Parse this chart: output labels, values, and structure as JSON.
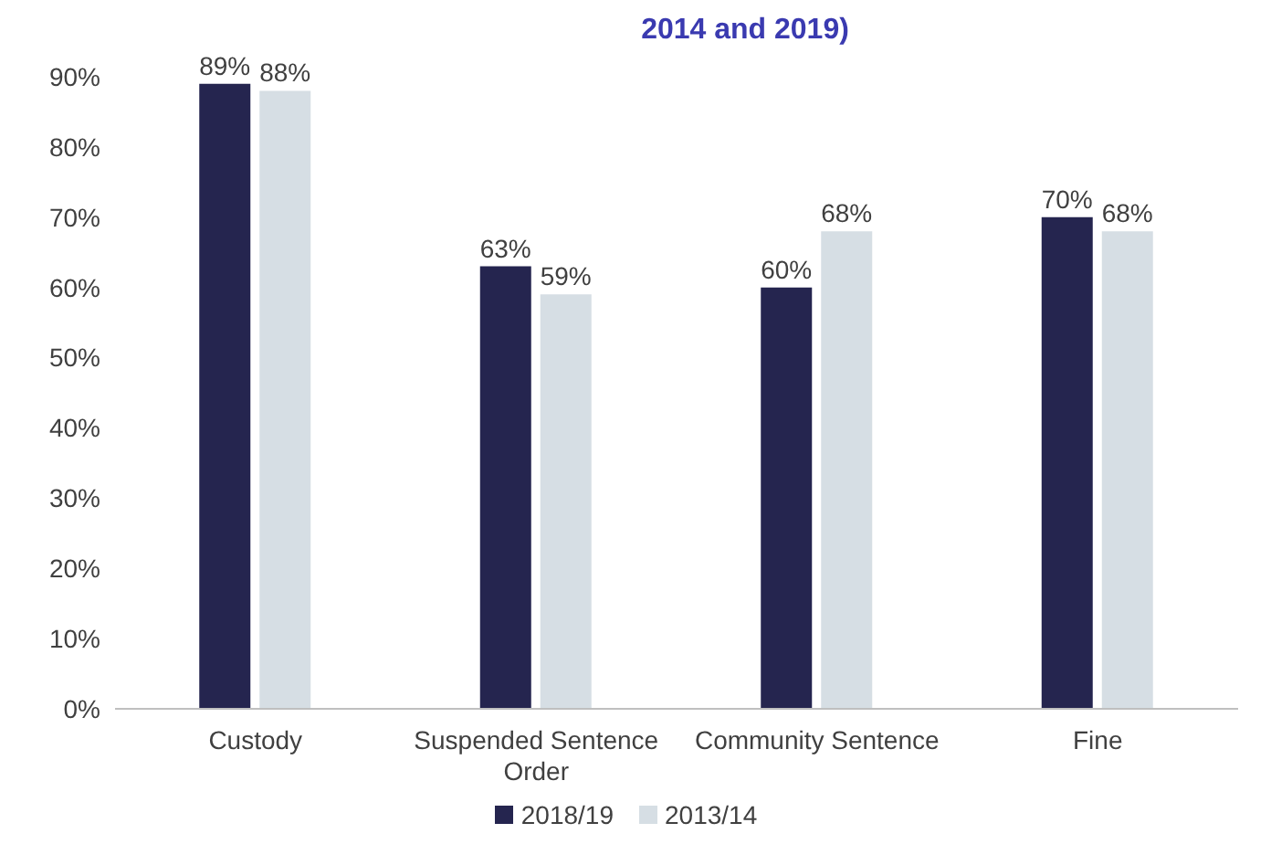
{
  "chart_data": {
    "type": "bar",
    "title": "2014 and 2019)",
    "categories": [
      "Custody",
      "Suspended Sentence Order",
      "Community Sentence",
      "Fine"
    ],
    "series": [
      {
        "name": "2018/19",
        "color": "#25254f",
        "values": [
          89,
          63,
          60,
          70
        ],
        "value_labels": [
          "89%",
          "63%",
          "60%",
          "70%"
        ]
      },
      {
        "name": "2013/14",
        "color": "#d6dee4",
        "values": [
          88,
          59,
          68,
          68
        ],
        "value_labels": [
          "88%",
          "59%",
          "68%",
          "68%"
        ]
      }
    ],
    "ylim": [
      0,
      90
    ],
    "yticks": [
      {
        "value": 0,
        "label": "0%"
      },
      {
        "value": 10,
        "label": "10%"
      },
      {
        "value": 20,
        "label": "20%"
      },
      {
        "value": 30,
        "label": "30%"
      },
      {
        "value": 40,
        "label": "40%"
      },
      {
        "value": 50,
        "label": "50%"
      },
      {
        "value": 60,
        "label": "60%"
      },
      {
        "value": 70,
        "label": "70%"
      },
      {
        "value": 80,
        "label": "80%"
      },
      {
        "value": 90,
        "label": "90%"
      }
    ],
    "grid": false,
    "legend": "bottom"
  }
}
